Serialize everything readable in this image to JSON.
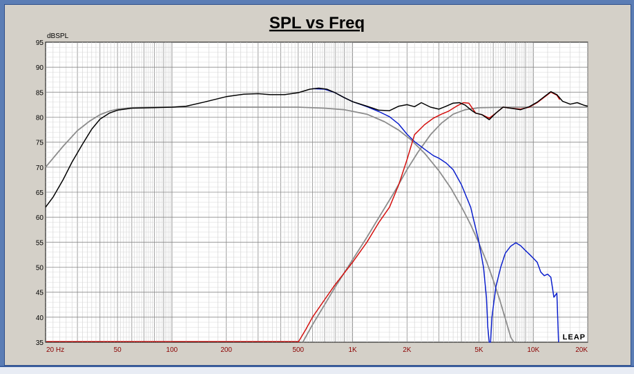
{
  "chart_data": {
    "type": "line",
    "title": "SPL vs Freq",
    "ylabel": "dBSPL",
    "xscale": "log",
    "xlim": [
      20,
      20000
    ],
    "ylim": [
      35,
      95
    ],
    "yticks": [
      35,
      40,
      45,
      50,
      55,
      60,
      65,
      70,
      75,
      80,
      85,
      90,
      95
    ],
    "xticks": [
      {
        "value": 20,
        "label": "20  Hz"
      },
      {
        "value": 50,
        "label": "50"
      },
      {
        "value": 100,
        "label": "100"
      },
      {
        "value": 200,
        "label": "200"
      },
      {
        "value": 500,
        "label": "500"
      },
      {
        "value": 1000,
        "label": "1K"
      },
      {
        "value": 2000,
        "label": "2K"
      },
      {
        "value": 5000,
        "label": "5K"
      },
      {
        "value": 10000,
        "label": "10K"
      },
      {
        "value": 20000,
        "label": "20K"
      }
    ],
    "grid": true,
    "watermark": "LEAP",
    "colors": {
      "total": "#000000",
      "target": "#8c8c8c",
      "woofer": "#0a1ecc",
      "tweeter": "#d4100e",
      "xlabels": "#8b0000"
    },
    "series": [
      {
        "key": "target",
        "color": "#8c8c8c",
        "points": [
          [
            20,
            70.0
          ],
          [
            25,
            74.2
          ],
          [
            30,
            77.3
          ],
          [
            35,
            79.2
          ],
          [
            40,
            80.5
          ],
          [
            45,
            81.2
          ],
          [
            50,
            81.6
          ],
          [
            60,
            81.9
          ],
          [
            80,
            82.0
          ],
          [
            100,
            82.0
          ],
          [
            200,
            82.0
          ],
          [
            500,
            82.0
          ],
          [
            700,
            81.8
          ],
          [
            900,
            81.5
          ],
          [
            1200,
            80.6
          ],
          [
            1500,
            79.1
          ],
          [
            1800,
            77.4
          ],
          [
            2100,
            75.5
          ],
          [
            2500,
            72.8
          ],
          [
            3000,
            69.3
          ],
          [
            3500,
            65.8
          ],
          [
            4000,
            62.1
          ],
          [
            4500,
            58.5
          ],
          [
            5000,
            54.8
          ],
          [
            5500,
            51.2
          ],
          [
            6000,
            47.4
          ],
          [
            6500,
            43.6
          ],
          [
            7000,
            39.7
          ],
          [
            7500,
            36.0
          ],
          [
            7800,
            35.0
          ]
        ]
      },
      {
        "key": "target-hp",
        "color": "#8c8c8c",
        "points": [
          [
            530,
            35.0
          ],
          [
            600,
            38.5
          ],
          [
            700,
            42.5
          ],
          [
            800,
            46.0
          ],
          [
            1000,
            51.5
          ],
          [
            1200,
            56.0
          ],
          [
            1400,
            60.0
          ],
          [
            1700,
            65.0
          ],
          [
            2000,
            69.5
          ],
          [
            2300,
            73.0
          ],
          [
            2700,
            76.5
          ],
          [
            3100,
            78.8
          ],
          [
            3600,
            80.6
          ],
          [
            4200,
            81.5
          ],
          [
            5000,
            81.9
          ],
          [
            7000,
            82.0
          ],
          [
            10000,
            82.0
          ],
          [
            20000,
            82.0
          ]
        ]
      },
      {
        "key": "total",
        "color": "#000000",
        "points": [
          [
            20,
            62.0
          ],
          [
            22,
            64.0
          ],
          [
            25,
            67.5
          ],
          [
            28,
            71.0
          ],
          [
            32,
            74.6
          ],
          [
            36,
            77.6
          ],
          [
            40,
            79.6
          ],
          [
            45,
            80.8
          ],
          [
            50,
            81.4
          ],
          [
            60,
            81.8
          ],
          [
            80,
            81.9
          ],
          [
            100,
            82.0
          ],
          [
            120,
            82.2
          ],
          [
            150,
            83.0
          ],
          [
            200,
            84.1
          ],
          [
            250,
            84.6
          ],
          [
            300,
            84.7
          ],
          [
            350,
            84.5
          ],
          [
            420,
            84.5
          ],
          [
            500,
            84.9
          ],
          [
            580,
            85.6
          ],
          [
            650,
            85.8
          ],
          [
            720,
            85.6
          ],
          [
            800,
            84.9
          ],
          [
            900,
            83.9
          ],
          [
            1000,
            83.1
          ],
          [
            1200,
            82.2
          ],
          [
            1400,
            81.4
          ],
          [
            1600,
            81.3
          ],
          [
            1800,
            82.2
          ],
          [
            2000,
            82.5
          ],
          [
            2200,
            82.1
          ],
          [
            2400,
            82.9
          ],
          [
            2700,
            82.0
          ],
          [
            3000,
            81.6
          ],
          [
            3300,
            82.2
          ],
          [
            3600,
            82.8
          ],
          [
            3900,
            82.9
          ],
          [
            4200,
            82.4
          ],
          [
            4500,
            81.5
          ],
          [
            4800,
            80.8
          ],
          [
            5200,
            80.5
          ],
          [
            5700,
            79.5
          ],
          [
            6200,
            80.8
          ],
          [
            6800,
            82.0
          ],
          [
            7500,
            81.8
          ],
          [
            8500,
            81.5
          ],
          [
            9500,
            82.1
          ],
          [
            10500,
            83.0
          ],
          [
            11500,
            84.1
          ],
          [
            12500,
            85.1
          ],
          [
            13500,
            84.5
          ],
          [
            14500,
            83.2
          ],
          [
            16000,
            82.6
          ],
          [
            17500,
            82.9
          ],
          [
            19000,
            82.4
          ],
          [
            20000,
            82.2
          ]
        ]
      },
      {
        "key": "woofer",
        "color": "#0a1ecc",
        "points": [
          [
            600,
            85.7
          ],
          [
            700,
            85.6
          ],
          [
            800,
            84.9
          ],
          [
            900,
            83.9
          ],
          [
            1000,
            83.1
          ],
          [
            1200,
            82.1
          ],
          [
            1400,
            81.1
          ],
          [
            1600,
            80.1
          ],
          [
            1800,
            78.6
          ],
          [
            2000,
            76.6
          ],
          [
            2200,
            75.1
          ],
          [
            2500,
            73.6
          ],
          [
            2800,
            72.3
          ],
          [
            3000,
            71.8
          ],
          [
            3300,
            70.8
          ],
          [
            3600,
            69.5
          ],
          [
            4000,
            66.5
          ],
          [
            4500,
            62.0
          ],
          [
            5000,
            55.0
          ],
          [
            5300,
            50.0
          ],
          [
            5500,
            44.0
          ],
          [
            5600,
            38.0
          ],
          [
            5700,
            35.0
          ],
          [
            5800,
            35.0
          ],
          [
            5900,
            40.0
          ],
          [
            6200,
            46.0
          ],
          [
            6600,
            50.0
          ],
          [
            7000,
            52.8
          ],
          [
            7500,
            54.2
          ],
          [
            8000,
            54.9
          ],
          [
            8500,
            54.3
          ],
          [
            9000,
            53.4
          ],
          [
            9500,
            52.6
          ],
          [
            10000,
            51.8
          ],
          [
            10500,
            51.0
          ],
          [
            11000,
            49.0
          ],
          [
            11500,
            48.3
          ],
          [
            12000,
            48.6
          ],
          [
            12500,
            48.0
          ],
          [
            13000,
            44.0
          ],
          [
            13500,
            44.8
          ],
          [
            13800,
            35.0
          ]
        ]
      },
      {
        "key": "tweeter",
        "color": "#d4100e",
        "points": [
          [
            500,
            35.0
          ],
          [
            550,
            37.5
          ],
          [
            600,
            40.0
          ],
          [
            700,
            43.5
          ],
          [
            800,
            46.5
          ],
          [
            1000,
            51.0
          ],
          [
            1200,
            55.0
          ],
          [
            1400,
            59.0
          ],
          [
            1600,
            62.0
          ],
          [
            1800,
            66.5
          ],
          [
            2000,
            71.5
          ],
          [
            2200,
            76.5
          ],
          [
            2500,
            78.5
          ],
          [
            2800,
            79.8
          ],
          [
            3100,
            80.6
          ],
          [
            3400,
            81.2
          ],
          [
            3800,
            82.3
          ],
          [
            4100,
            82.9
          ],
          [
            4400,
            82.8
          ],
          [
            4800,
            80.8
          ],
          [
            5200,
            80.5
          ],
          [
            5700,
            79.8
          ],
          [
            6200,
            80.8
          ],
          [
            6800,
            82.0
          ],
          [
            7500,
            81.8
          ],
          [
            8500,
            81.6
          ],
          [
            9500,
            82.0
          ],
          [
            10500,
            82.9
          ],
          [
            11500,
            84.0
          ],
          [
            12500,
            85.0
          ],
          [
            13500,
            84.4
          ],
          [
            14000,
            83.5
          ]
        ]
      }
    ]
  }
}
